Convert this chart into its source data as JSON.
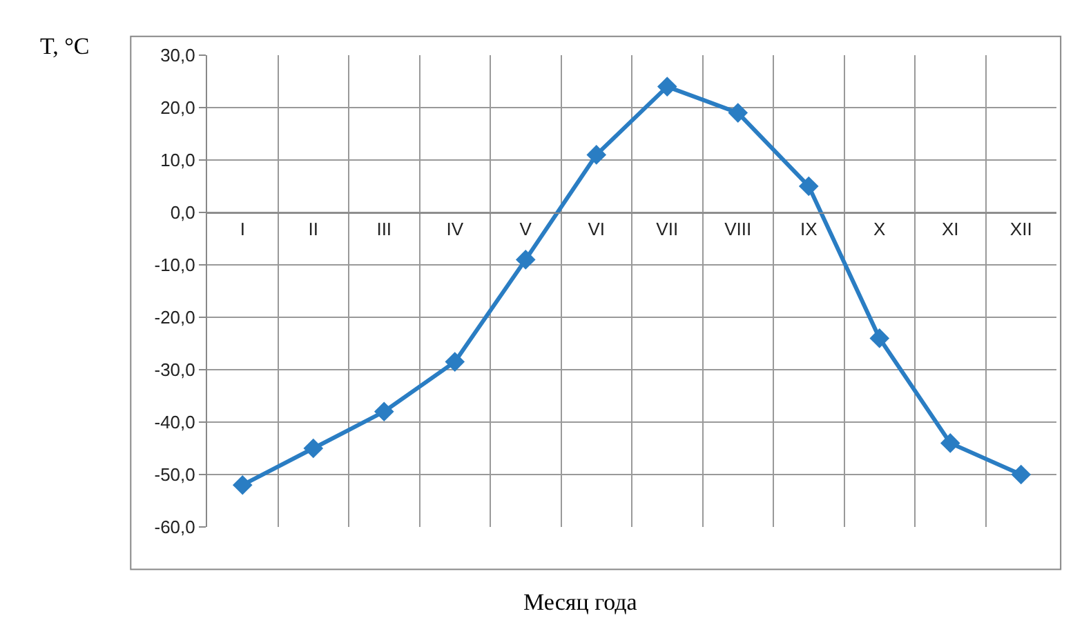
{
  "chart_data": {
    "type": "line",
    "xlabel": "Месяц года",
    "ylabel": "T, °C",
    "categories": [
      "I",
      "II",
      "III",
      "IV",
      "V",
      "VI",
      "VII",
      "VIII",
      "IX",
      "X",
      "XI",
      "XII"
    ],
    "series": [
      {
        "color": "#2a7dc3",
        "values": [
          -52,
          -45,
          -38,
          -28.5,
          -9,
          11,
          24,
          19,
          5,
          -24,
          -44,
          -50
        ]
      }
    ],
    "ylim": [
      -60,
      30
    ],
    "yticks": [
      {
        "value": -60,
        "label": "-60,0"
      },
      {
        "value": -50,
        "label": "-50,0"
      },
      {
        "value": -40,
        "label": "-40,0"
      },
      {
        "value": -30,
        "label": "-30,0"
      },
      {
        "value": -20,
        "label": "-20,0"
      },
      {
        "value": -10,
        "label": "-10,0"
      },
      {
        "value": 0,
        "label": "0,0"
      },
      {
        "value": 10,
        "label": "10,0"
      },
      {
        "value": 20,
        "label": "20,0"
      },
      {
        "value": 30,
        "label": "30,0"
      }
    ],
    "grid": true,
    "marker": "diamond",
    "line_style": "solid",
    "legend": false
  }
}
